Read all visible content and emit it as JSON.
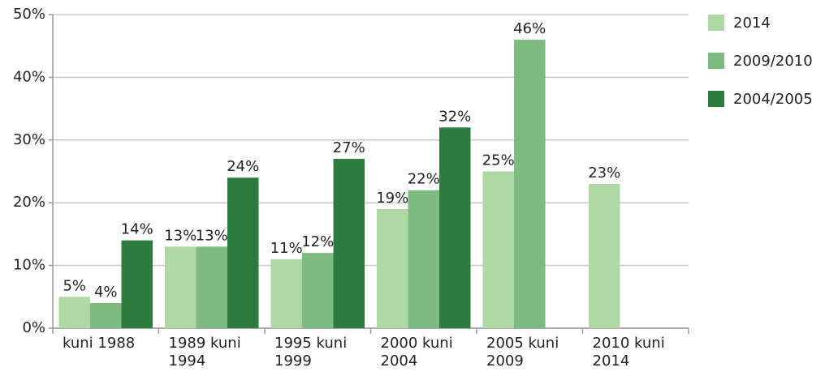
{
  "chart_data": {
    "type": "bar",
    "categories": [
      "kuni 1988",
      "1989 kuni 1994",
      "1995 kuni 1999",
      "2000 kuni 2004",
      "2005 kuni 2009",
      "2010 kuni 2014"
    ],
    "series": [
      {
        "name": "2014",
        "color": "#b0d8a4",
        "values": [
          5,
          13,
          11,
          19,
          25,
          23
        ],
        "value_labels": [
          "5%",
          "13%",
          "11%",
          "19%",
          "25%",
          "23%"
        ]
      },
      {
        "name": "2009/2010",
        "color": "#7dbb80",
        "values": [
          4,
          13,
          12,
          22,
          46,
          null
        ],
        "value_labels": [
          "4%",
          "13%",
          "12%",
          "22%",
          "46%",
          null
        ]
      },
      {
        "name": "2004/2005",
        "color": "#2e7b3f",
        "values": [
          14,
          24,
          27,
          32,
          null,
          null
        ],
        "value_labels": [
          "14%",
          "24%",
          "27%",
          "32%",
          null,
          null
        ]
      }
    ],
    "ylim": [
      0,
      50
    ],
    "yticks": [
      {
        "value": 0,
        "label": "0%"
      },
      {
        "value": 10,
        "label": "10%"
      },
      {
        "value": 20,
        "label": "20%"
      },
      {
        "value": 30,
        "label": "30%"
      },
      {
        "value": 40,
        "label": "40%"
      },
      {
        "value": 50,
        "label": "50%"
      }
    ],
    "grid": true,
    "legend": "right"
  }
}
